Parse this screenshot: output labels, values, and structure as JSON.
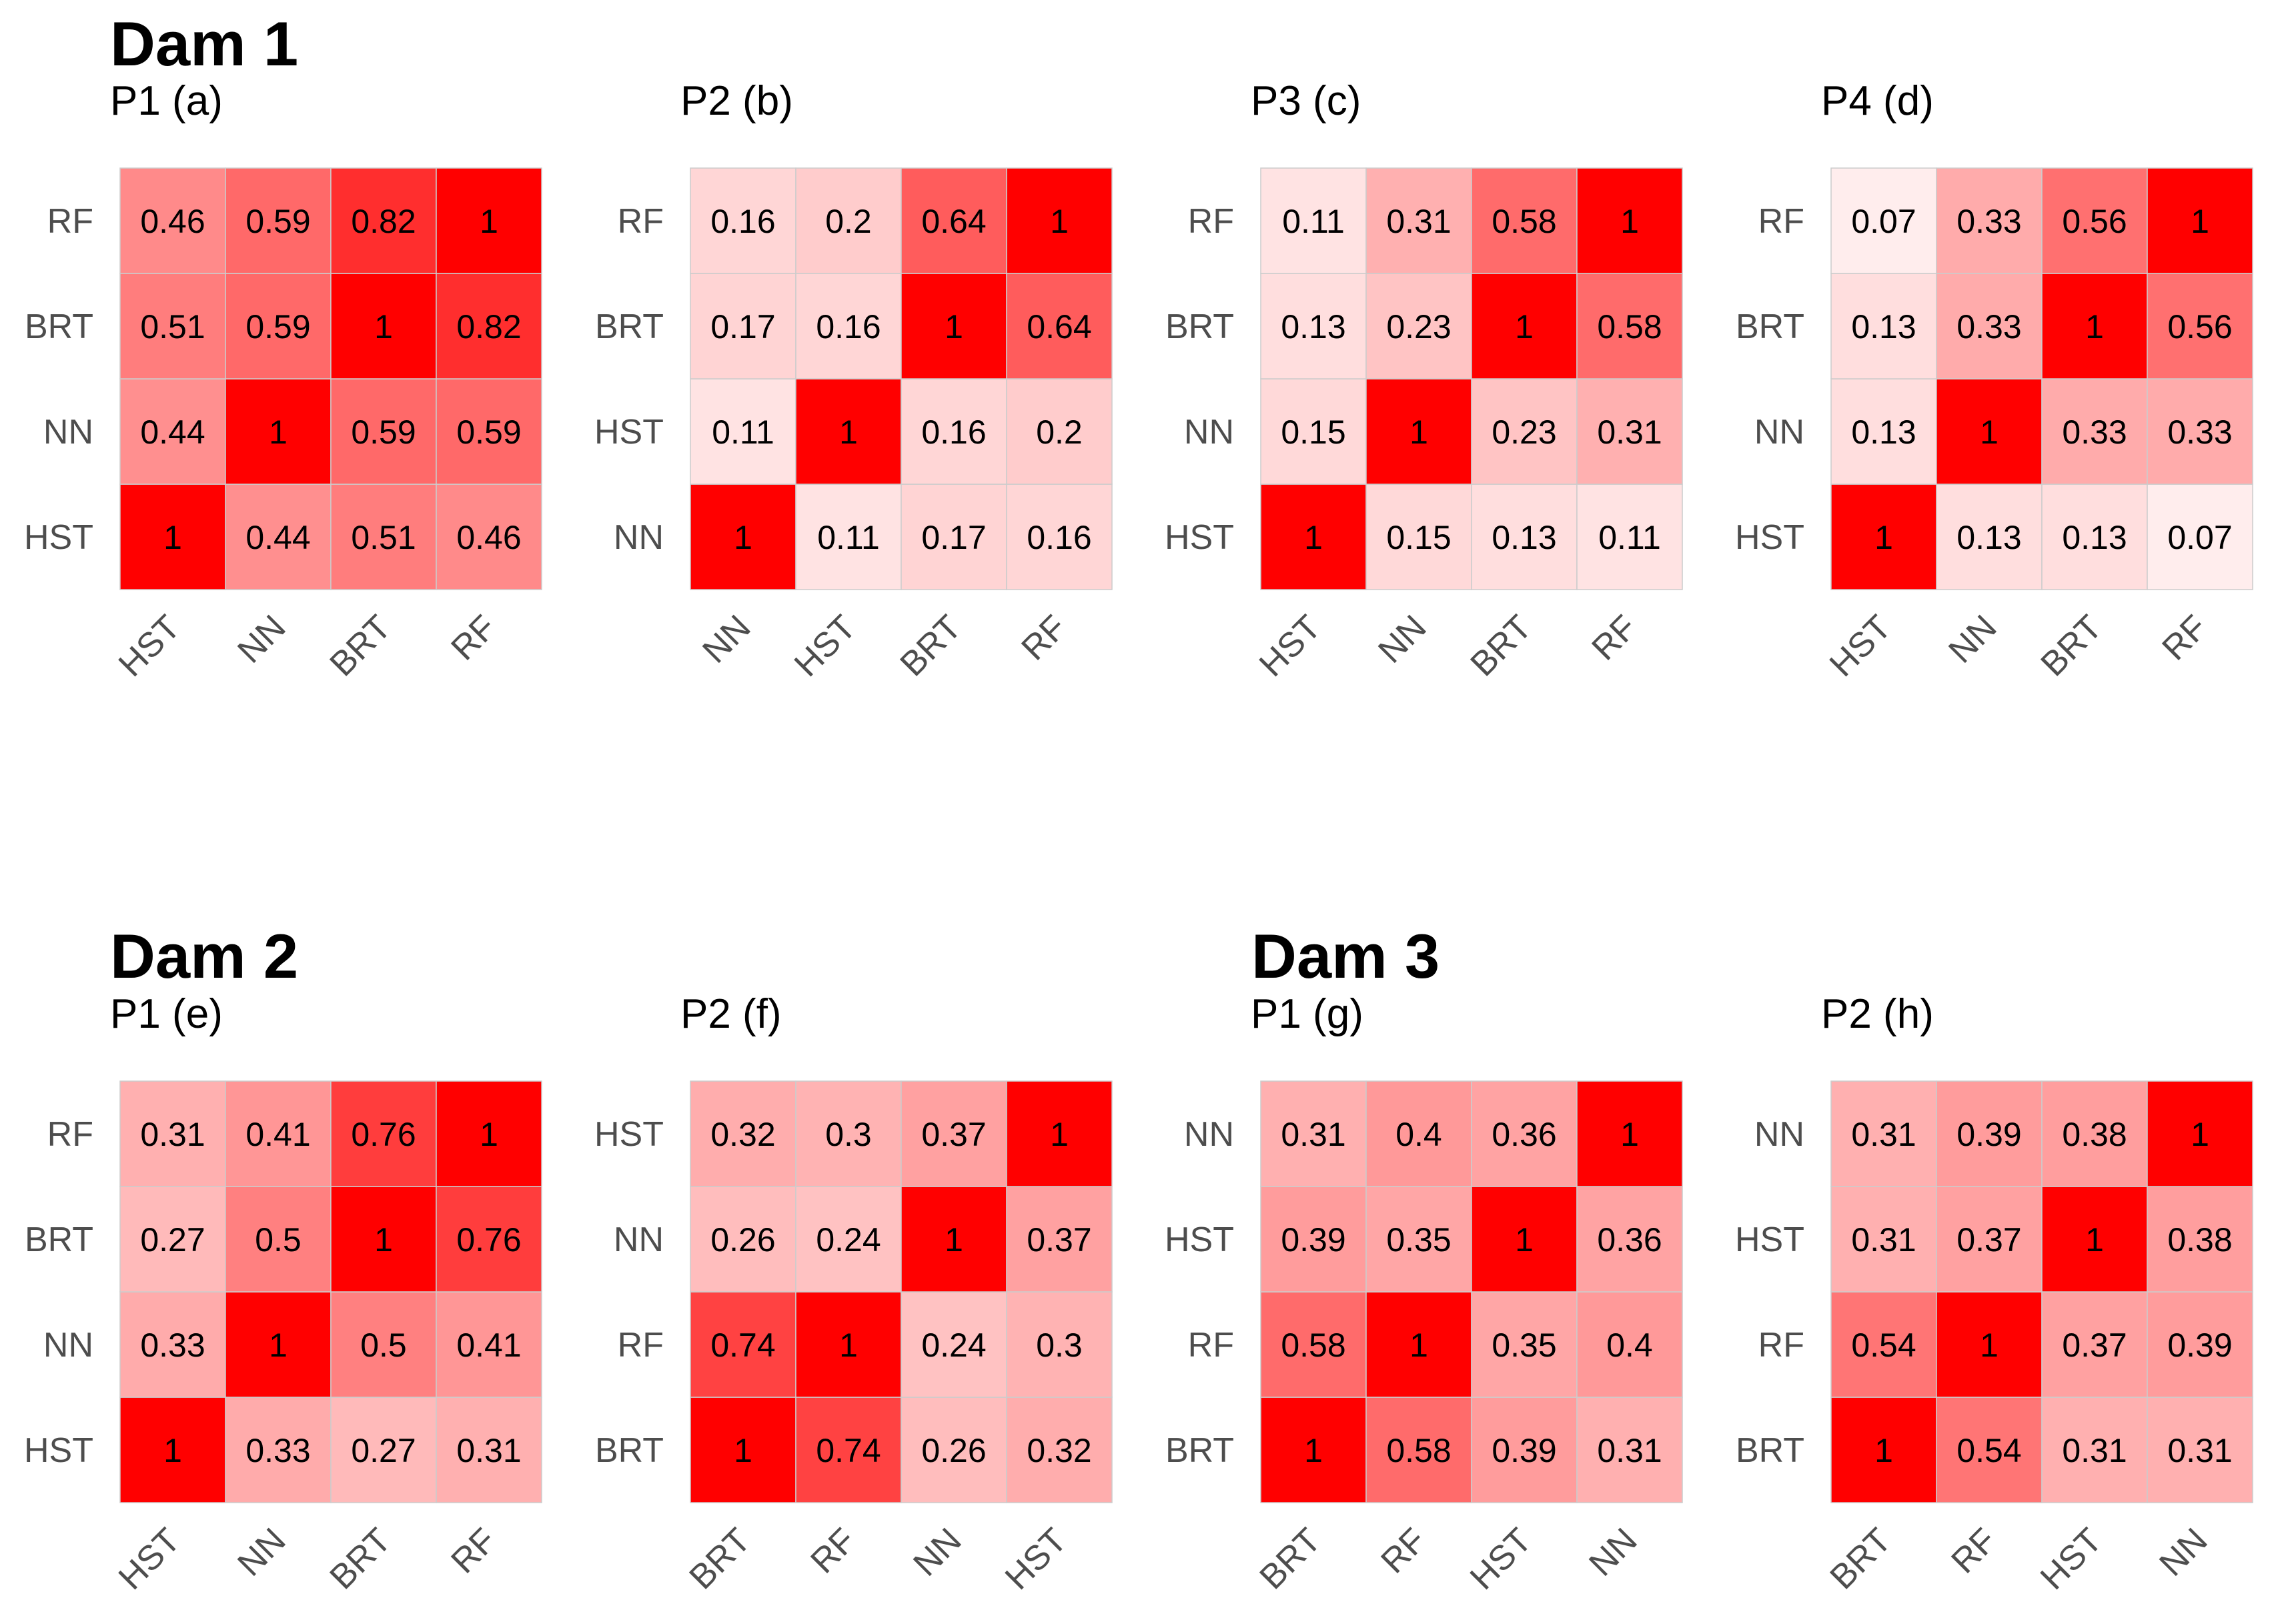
{
  "groups": [
    {
      "label": "Dam 1"
    },
    {
      "label": "Dam 2"
    },
    {
      "label": "Dam 3"
    }
  ],
  "colors": {
    "low": "#FFFFFF",
    "high": "#FF0000",
    "grid": "#CCCCCC",
    "tick_text": "#4D4D4D"
  },
  "chart_data": [
    {
      "type": "heatmap",
      "group": "Dam 1",
      "title": "P1 (a)",
      "order": [
        "HST",
        "NN",
        "BRT",
        "RF"
      ],
      "matrix": [
        [
          1,
          0.44,
          0.51,
          0.46
        ],
        [
          0.44,
          1,
          0.59,
          0.59
        ],
        [
          0.51,
          0.59,
          1,
          0.82
        ],
        [
          0.46,
          0.59,
          0.82,
          1
        ]
      ]
    },
    {
      "type": "heatmap",
      "group": "Dam 1",
      "title": "P2 (b)",
      "order": [
        "NN",
        "HST",
        "BRT",
        "RF"
      ],
      "matrix": [
        [
          1,
          0.11,
          0.17,
          0.16
        ],
        [
          0.11,
          1,
          0.16,
          0.2
        ],
        [
          0.17,
          0.16,
          1,
          0.64
        ],
        [
          0.16,
          0.2,
          0.64,
          1
        ]
      ]
    },
    {
      "type": "heatmap",
      "group": "Dam 1",
      "title": "P3 (c)",
      "order": [
        "HST",
        "NN",
        "BRT",
        "RF"
      ],
      "matrix": [
        [
          1,
          0.15,
          0.13,
          0.11
        ],
        [
          0.15,
          1,
          0.23,
          0.31
        ],
        [
          0.13,
          0.23,
          1,
          0.58
        ],
        [
          0.11,
          0.31,
          0.58,
          1
        ]
      ]
    },
    {
      "type": "heatmap",
      "group": "Dam 1",
      "title": "P4 (d)",
      "order": [
        "HST",
        "NN",
        "BRT",
        "RF"
      ],
      "matrix": [
        [
          1,
          0.13,
          0.13,
          0.07
        ],
        [
          0.13,
          1,
          0.33,
          0.33
        ],
        [
          0.13,
          0.33,
          1,
          0.56
        ],
        [
          0.07,
          0.33,
          0.56,
          1
        ]
      ]
    },
    {
      "type": "heatmap",
      "group": "Dam 2",
      "title": "P1 (e)",
      "order": [
        "HST",
        "NN",
        "BRT",
        "RF"
      ],
      "matrix": [
        [
          1,
          0.33,
          0.27,
          0.31
        ],
        [
          0.33,
          1,
          0.5,
          0.41
        ],
        [
          0.27,
          0.5,
          1,
          0.76
        ],
        [
          0.31,
          0.41,
          0.76,
          1
        ]
      ]
    },
    {
      "type": "heatmap",
      "group": "Dam 2",
      "title": "P2 (f)",
      "order": [
        "BRT",
        "RF",
        "NN",
        "HST"
      ],
      "matrix": [
        [
          1,
          0.74,
          0.26,
          0.32
        ],
        [
          0.74,
          1,
          0.24,
          0.3
        ],
        [
          0.26,
          0.24,
          1,
          0.37
        ],
        [
          0.32,
          0.3,
          0.37,
          1
        ]
      ]
    },
    {
      "type": "heatmap",
      "group": "Dam 3",
      "title": "P1 (g)",
      "order": [
        "BRT",
        "RF",
        "HST",
        "NN"
      ],
      "matrix": [
        [
          1,
          0.58,
          0.39,
          0.31
        ],
        [
          0.58,
          1,
          0.35,
          0.4
        ],
        [
          0.39,
          0.35,
          1,
          0.36
        ],
        [
          0.31,
          0.4,
          0.36,
          1
        ]
      ]
    },
    {
      "type": "heatmap",
      "group": "Dam 3",
      "title": "P2 (h)",
      "order": [
        "BRT",
        "RF",
        "HST",
        "NN"
      ],
      "matrix": [
        [
          1,
          0.54,
          0.31,
          0.31
        ],
        [
          0.54,
          1,
          0.37,
          0.39
        ],
        [
          0.31,
          0.37,
          1,
          0.38
        ],
        [
          0.31,
          0.39,
          0.38,
          1
        ]
      ]
    }
  ]
}
